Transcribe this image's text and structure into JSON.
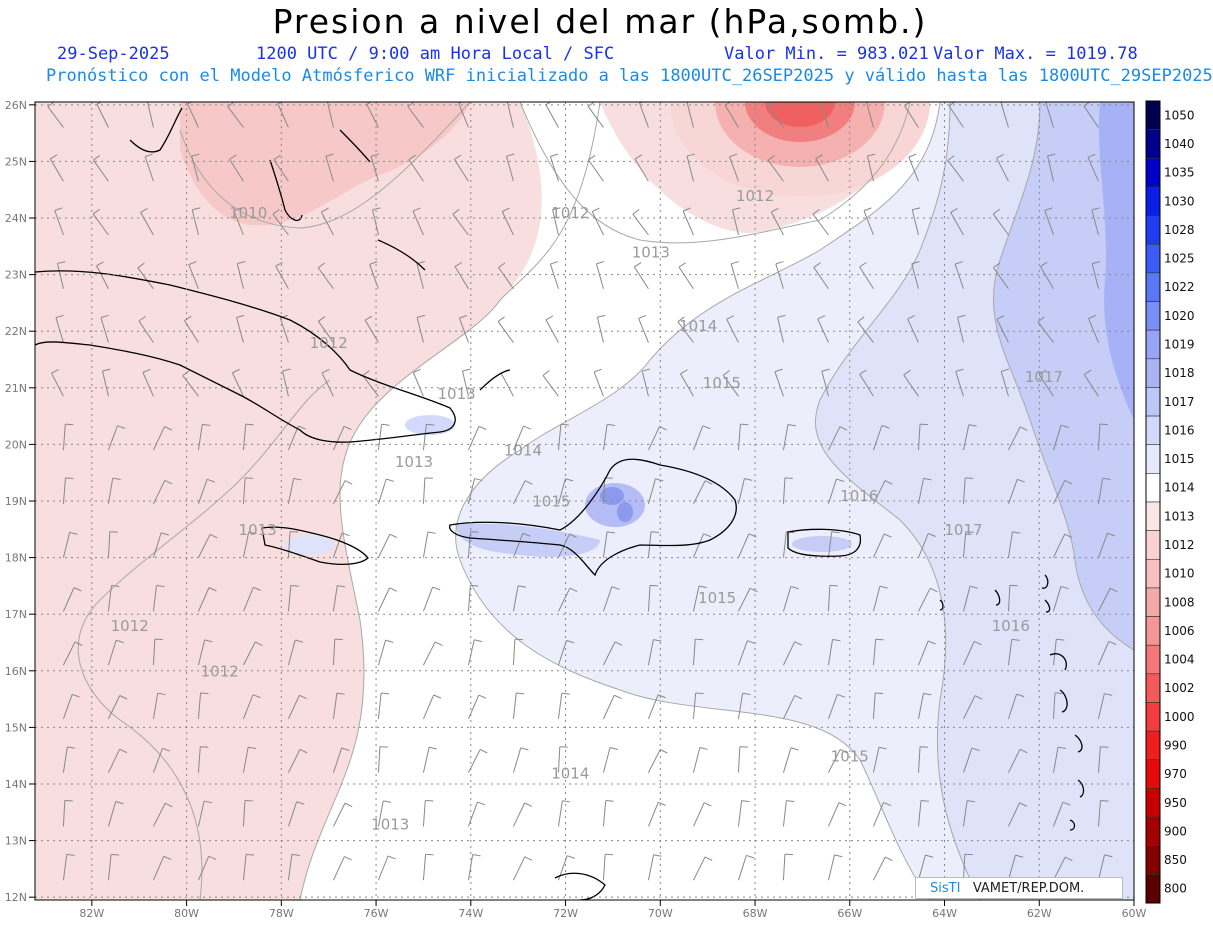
{
  "title": "Presion a nivel del mar (hPa,somb.)",
  "date": "29-Sep-2025",
  "time": "1200 UTC / 9:00 am Hora Local / SFC",
  "vmin": "Valor Min. = 983.021",
  "vmax": "Valor Max. = 1019.78",
  "line2": "Pronóstico con el Modelo Atmósferico WRF inicializado a las 1800UTC_26SEP2025 y válido hasta las  1800UTC_29SEP2025",
  "watermark_a": "SisTI",
  "watermark_b": "VAMET/REP.DOM.",
  "lon_labels": [
    "82W",
    "80W",
    "78W",
    "76W",
    "74W",
    "72W",
    "70W",
    "68W",
    "66W",
    "64W",
    "62W",
    "60W"
  ],
  "lat_labels": [
    "26N",
    "25N",
    "24N",
    "23N",
    "22N",
    "21N",
    "20N",
    "19N",
    "18N",
    "17N",
    "16N",
    "15N",
    "14N",
    "13N",
    "12N"
  ],
  "colorbar": [
    "1050",
    "1040",
    "1035",
    "1030",
    "1028",
    "1025",
    "1022",
    "1020",
    "1019",
    "1018",
    "1017",
    "1016",
    "1015",
    "1014",
    "1013",
    "1012",
    "1010",
    "1008",
    "1006",
    "1004",
    "1002",
    "1000",
    "990",
    "970",
    "950",
    "900",
    "850",
    "800"
  ],
  "colorbar_colors": [
    "#000050",
    "#00008c",
    "#0000c8",
    "#0a1ee6",
    "#1e3cf0",
    "#3c5af5",
    "#5a78f5",
    "#7890f5",
    "#96a5f5",
    "#aab4f5",
    "#bec8f7",
    "#d2d9fa",
    "#e6e9fc",
    "#ffffff",
    "#fbe6e6",
    "#fad2d2",
    "#f8c0c0",
    "#f5aaaa",
    "#f59696",
    "#f57878",
    "#f55a5a",
    "#f53c3c",
    "#f01e1e",
    "#e60a0a",
    "#c80000",
    "#a50000",
    "#820000",
    "#5a0000"
  ],
  "contour_labels": [
    {
      "text": "1010",
      "lon": -78.7,
      "lat": 24.0
    },
    {
      "text": "1012",
      "lon": -71.9,
      "lat": 24.0
    },
    {
      "text": "1012",
      "lon": -68.0,
      "lat": 24.3
    },
    {
      "text": "1013",
      "lon": -70.2,
      "lat": 23.3
    },
    {
      "text": "1014",
      "lon": -69.2,
      "lat": 22.0
    },
    {
      "text": "1015",
      "lon": -68.7,
      "lat": 21.0
    },
    {
      "text": "1017",
      "lon": -61.9,
      "lat": 21.1
    },
    {
      "text": "1012",
      "lon": -77.0,
      "lat": 21.7
    },
    {
      "text": "1013",
      "lon": -74.3,
      "lat": 20.8
    },
    {
      "text": "1013",
      "lon": -75.2,
      "lat": 19.6
    },
    {
      "text": "1014",
      "lon": -72.9,
      "lat": 19.8
    },
    {
      "text": "1015",
      "lon": -72.3,
      "lat": 18.9
    },
    {
      "text": "1016",
      "lon": -65.8,
      "lat": 19.0
    },
    {
      "text": "1017",
      "lon": -63.6,
      "lat": 18.4
    },
    {
      "text": "1013",
      "lon": -78.5,
      "lat": 18.4
    },
    {
      "text": "1015",
      "lon": -68.8,
      "lat": 17.2
    },
    {
      "text": "1016",
      "lon": -62.6,
      "lat": 16.7
    },
    {
      "text": "1012",
      "lon": -81.2,
      "lat": 16.7
    },
    {
      "text": "1012",
      "lon": -79.3,
      "lat": 15.9
    },
    {
      "text": "1014",
      "lon": -71.9,
      "lat": 14.1
    },
    {
      "text": "1015",
      "lon": -66.0,
      "lat": 14.4
    },
    {
      "text": "1013",
      "lon": -75.7,
      "lat": 13.2
    }
  ]
}
